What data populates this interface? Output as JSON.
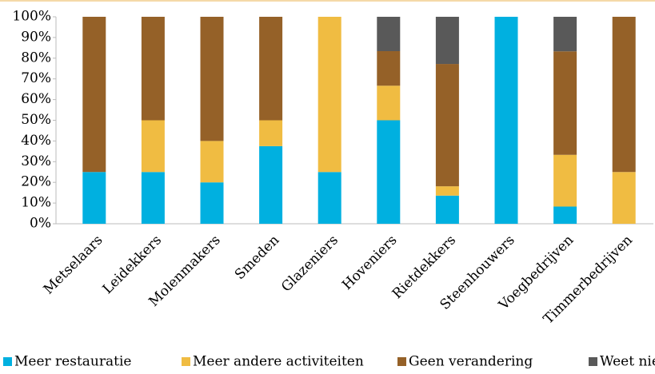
{
  "chart_data": {
    "type": "stacked_bar",
    "categories": [
      "Metselaars",
      "Leidekkers",
      "Molenmakers",
      "Smeden",
      "Glazeniers",
      "Hoveniers",
      "Rietdekkers",
      "Steenhouwers",
      "Voegbedrijven",
      "Timmerbedrijven"
    ],
    "series": [
      {
        "name": "Meer restauratie",
        "color": "#00b0e0",
        "values": [
          25,
          25,
          20,
          37.5,
          25,
          50,
          13.6,
          100,
          8.3,
          0
        ]
      },
      {
        "name": "Meer andere activiteiten",
        "color": "#f0bc42",
        "values": [
          0,
          25,
          20,
          12.5,
          75,
          16.7,
          4.5,
          0,
          25,
          25
        ]
      },
      {
        "name": "Geen verandering",
        "color": "#956128",
        "values": [
          75,
          50,
          60,
          50,
          0,
          16.7,
          59.1,
          0,
          50,
          75
        ]
      },
      {
        "name": "Weet niet",
        "color": "#595959",
        "values": [
          0,
          0,
          0,
          0,
          0,
          16.6,
          22.8,
          0,
          16.7,
          0
        ]
      }
    ],
    "ylim": [
      0,
      100
    ],
    "yticks": [
      {
        "value": 0,
        "label": "0%"
      },
      {
        "value": 10,
        "label": "10%"
      },
      {
        "value": 20,
        "label": "20%"
      },
      {
        "value": 30,
        "label": "30%"
      },
      {
        "value": 40,
        "label": "40%"
      },
      {
        "value": 50,
        "label": "50%"
      },
      {
        "value": 60,
        "label": "60%"
      },
      {
        "value": 70,
        "label": "70%"
      },
      {
        "value": 80,
        "label": "80%"
      },
      {
        "value": 90,
        "label": "90%"
      },
      {
        "value": 100,
        "label": "100%"
      }
    ],
    "legend": "bottom"
  }
}
